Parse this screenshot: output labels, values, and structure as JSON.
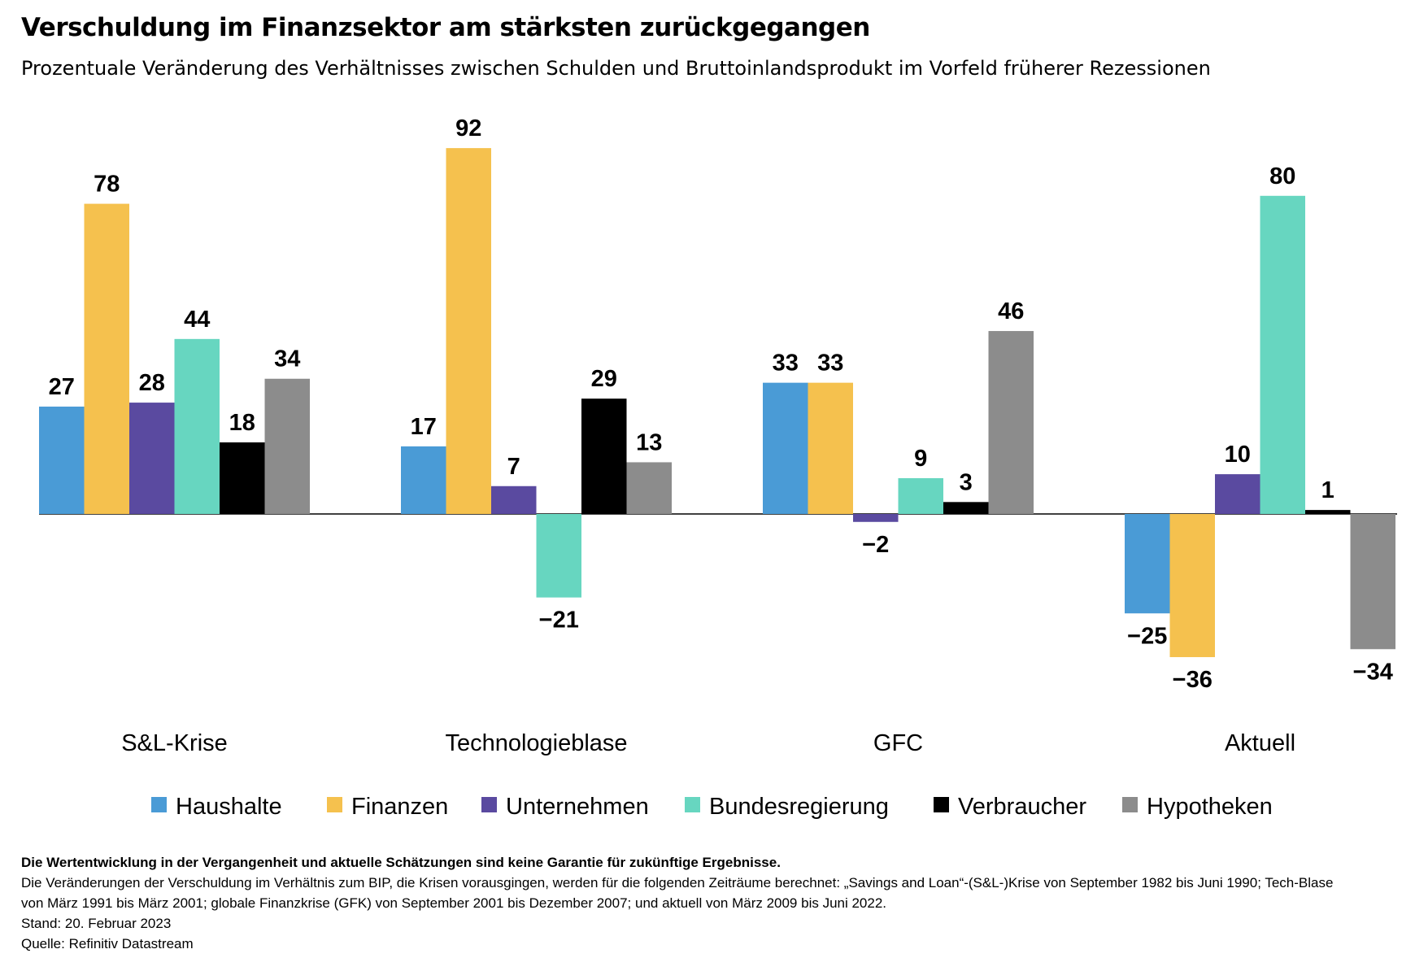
{
  "title": "Verschuldung im Finanzsektor am stärksten zurückgegangen",
  "subtitle": "Prozentuale Veränderung des Verhältnisses zwischen Schulden und Bruttoinlandsprodukt im Vorfeld früherer Rezessionen",
  "footnotes": {
    "disclaimer": "Die Wertentwicklung in der Vergangenheit und aktuelle Schätzungen sind keine Garantie für zukünftige Ergebnisse.",
    "line1": "Die Veränderungen der Verschuldung im Verhältnis zum BIP, die Krisen vorausgingen, werden für die folgenden Zeiträume berechnet: „Savings and Loan“-(S&L-)Krise von September 1982 bis Juni 1990; Tech-Blase",
    "line2": "von März 1991 bis März 2001; globale Finanzkrise (GFK) von September 2001 bis Dezember 2007; und aktuell von März 2009 bis Juni 2022.",
    "stand": "Stand: 20. Februar 2023",
    "source": "Quelle: Refinitiv Datastream"
  },
  "chart_data": {
    "type": "bar",
    "categories": [
      "S&L-Krise",
      "Technologieblase",
      "GFC",
      "Aktuell"
    ],
    "series": [
      {
        "name": "Haushalte",
        "color": "#4a9bd6",
        "values": [
          27,
          17,
          33,
          -25
        ]
      },
      {
        "name": "Finanzen",
        "color": "#f5c14e",
        "values": [
          78,
          92,
          33,
          -36
        ]
      },
      {
        "name": "Unternehmen",
        "color": "#5a4aa0",
        "values": [
          28,
          7,
          -2,
          10
        ]
      },
      {
        "name": "Bundesregierung",
        "color": "#67d6c0",
        "values": [
          44,
          -21,
          9,
          80
        ]
      },
      {
        "name": "Verbraucher",
        "color": "#000000",
        "values": [
          18,
          29,
          3,
          1
        ]
      },
      {
        "name": "Hypotheken",
        "color": "#8c8c8c",
        "values": [
          34,
          13,
          46,
          -34
        ]
      }
    ],
    "value_labels": [
      [
        "27",
        "78",
        "28",
        "44",
        "18",
        "34"
      ],
      [
        "17",
        "92",
        "7",
        "−21",
        "29",
        "13"
      ],
      [
        "33",
        "33",
        "−2",
        "9",
        "3",
        "46"
      ],
      [
        "−25",
        "−36",
        "10",
        "80",
        "1",
        "−34"
      ]
    ],
    "ylim": [
      -40,
      100
    ],
    "grid": false,
    "legend": "bottom"
  }
}
